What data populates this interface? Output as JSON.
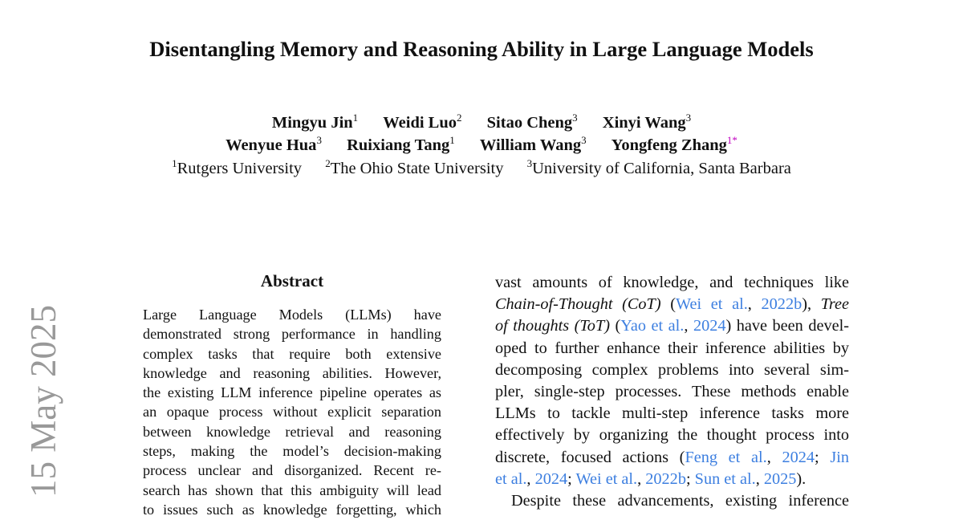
{
  "title": "Disentangling Memory and Reasoning Ability in Large Language Models",
  "authors_line1": [
    {
      "name": "Mingyu Jin",
      "aff": "1"
    },
    {
      "name": "Weidi Luo",
      "aff": "2"
    },
    {
      "name": "Sitao Cheng",
      "aff": "3"
    },
    {
      "name": "Xinyi Wang",
      "aff": "3"
    }
  ],
  "authors_line2": [
    {
      "name": "Wenyue Hua",
      "aff": "3"
    },
    {
      "name": "Ruixiang Tang",
      "aff": "1"
    },
    {
      "name": "William Wang",
      "aff": "3"
    },
    {
      "name": "Yongfeng Zhang",
      "aff": "1",
      "mark": "*"
    }
  ],
  "affiliations": [
    {
      "num": "1",
      "name": "Rutgers University"
    },
    {
      "num": "2",
      "name": "The Ohio State University"
    },
    {
      "num": "3",
      "name": "University of California, Santa Barbara"
    }
  ],
  "arxiv_stamp": "15 May 2025",
  "abstract_heading": "Abstract",
  "abstract_lines": [
    "Large Language Models (LLMs) have",
    "demonstrated strong performance in handling",
    "complex tasks that require both extensive",
    "knowledge and reasoning abilities. However,",
    "the existing LLM inference pipeline operates as",
    "an opaque process without explicit separation",
    "between knowledge retrieval and reasoning",
    "steps, making the model’s decision-making",
    "process unclear and disorganized. Recent re-",
    "search has shown that this ambiguity will lead",
    "to issues such as knowledge forgetting, which"
  ],
  "body_lines": [
    {
      "segs": [
        {
          "t": "vast amounts of knowledge, and techniques like"
        }
      ]
    },
    {
      "segs": [
        {
          "t": "Chain-of-Thought (CoT)",
          "s": "it"
        },
        {
          "t": " ("
        },
        {
          "t": "Wei et al.",
          "s": "lk"
        },
        {
          "t": ", "
        },
        {
          "t": "2022b",
          "s": "lk"
        },
        {
          "t": "), "
        },
        {
          "t": "Tree",
          "s": "it"
        }
      ]
    },
    {
      "segs": [
        {
          "t": "of thoughts (ToT)",
          "s": "it"
        },
        {
          "t": " ("
        },
        {
          "t": "Yao et al.",
          "s": "lk"
        },
        {
          "t": ", "
        },
        {
          "t": "2024",
          "s": "lk"
        },
        {
          "t": ") have been devel-"
        }
      ]
    },
    {
      "segs": [
        {
          "t": "oped to further enhance their inference abilities by"
        }
      ]
    },
    {
      "segs": [
        {
          "t": "decomposing complex problems into several sim-"
        }
      ]
    },
    {
      "segs": [
        {
          "t": "pler, single-step processes. These methods enable"
        }
      ]
    },
    {
      "segs": [
        {
          "t": "LLMs to tackle multi-step inference tasks more"
        }
      ]
    },
    {
      "segs": [
        {
          "t": "effectively by organizing the thought process into"
        }
      ]
    },
    {
      "segs": [
        {
          "t": "discrete, focused actions ("
        },
        {
          "t": "Feng et al.",
          "s": "lk"
        },
        {
          "t": ", "
        },
        {
          "t": "2024",
          "s": "lk"
        },
        {
          "t": "; "
        },
        {
          "t": "Jin",
          "s": "lk"
        }
      ]
    },
    {
      "last": true,
      "segs": [
        {
          "t": "et al.",
          "s": "lk"
        },
        {
          "t": ", "
        },
        {
          "t": "2024",
          "s": "lk"
        },
        {
          "t": "; "
        },
        {
          "t": "Wei et al.",
          "s": "lk"
        },
        {
          "t": ", "
        },
        {
          "t": "2022b",
          "s": "lk"
        },
        {
          "t": "; "
        },
        {
          "t": "Sun et al.",
          "s": "lk"
        },
        {
          "t": ", "
        },
        {
          "t": "2025",
          "s": "lk"
        },
        {
          "t": ")."
        }
      ]
    },
    {
      "indent": true,
      "segs": [
        {
          "t": "Despite these advancements, existing inference"
        }
      ]
    }
  ],
  "colors": {
    "link": "#3d7fe0",
    "stamp": "#999999",
    "corresponding_mark": "#c000c0"
  }
}
